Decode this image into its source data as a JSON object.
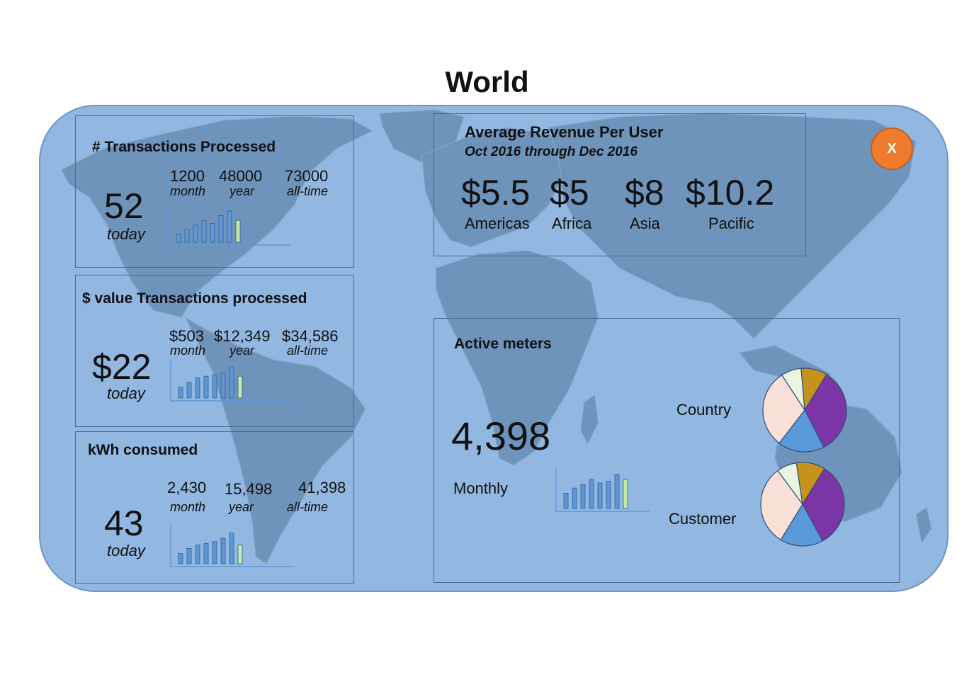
{
  "page": {
    "title": "World"
  },
  "close_button": {
    "label": "X",
    "color": "#ef7b2c"
  },
  "transactions": {
    "heading": "# Transactions Processed",
    "today_value": "52",
    "today_label": "today",
    "stats": [
      {
        "value": "1200",
        "label": "month"
      },
      {
        "value": "48000",
        "label": "year"
      },
      {
        "value": "73000",
        "label": "all-time"
      }
    ],
    "sparkline": [
      0.25,
      0.4,
      0.55,
      0.7,
      0.6,
      0.85,
      1.0,
      0.7
    ]
  },
  "value_transactions": {
    "heading": "$ value Transactions processed",
    "today_value": "$22",
    "today_label": "today",
    "stats": [
      {
        "value": "$503",
        "label": "month"
      },
      {
        "value": "$12,349",
        "label": "year"
      },
      {
        "value": "$34,586",
        "label": "all-time"
      }
    ],
    "sparkline": [
      0.35,
      0.5,
      0.65,
      0.7,
      0.75,
      0.8,
      1.0,
      0.7
    ]
  },
  "kwh": {
    "heading": "kWh consumed",
    "today_value": "43",
    "today_label": "today",
    "stats": [
      {
        "value": "2,430",
        "label": "month"
      },
      {
        "value": "15,498",
        "label": "year"
      },
      {
        "value": "41,398",
        "label": "all-time"
      }
    ],
    "sparkline": [
      0.3,
      0.45,
      0.55,
      0.6,
      0.65,
      0.75,
      0.9,
      0.55
    ]
  },
  "arpu": {
    "heading": "Average Revenue Per User",
    "subheading": "Oct 2016 through Dec 2016",
    "regions": [
      {
        "value": "$5.5",
        "label": "Americas"
      },
      {
        "value": "$5",
        "label": "Africa"
      },
      {
        "value": "$8",
        "label": "Asia"
      },
      {
        "value": "$10.2",
        "label": "Pacific"
      }
    ]
  },
  "active_meters": {
    "heading": "Active meters",
    "value": "4,398",
    "period_label": "Monthly",
    "sparkline": [
      0.45,
      0.6,
      0.7,
      0.85,
      0.75,
      0.8,
      1.0,
      0.85
    ],
    "pies": [
      {
        "label": "Country",
        "slices": [
          30,
          16,
          27,
          7,
          9
        ],
        "colors": [
          "#7b35a6",
          "#5a9ad9",
          "#f9e0d6",
          "#e9f4e1",
          "#c6921c"
        ]
      },
      {
        "label": "Customer",
        "slices": [
          30,
          15,
          28,
          7,
          10
        ],
        "colors": [
          "#7b35a6",
          "#5a9ad9",
          "#f9e0d6",
          "#e9f4e1",
          "#c6921c"
        ]
      }
    ]
  },
  "colors": {
    "bar": "#5f97d6",
    "bar_highlight": "#c6e8a0",
    "panel": "#92b8e2"
  }
}
